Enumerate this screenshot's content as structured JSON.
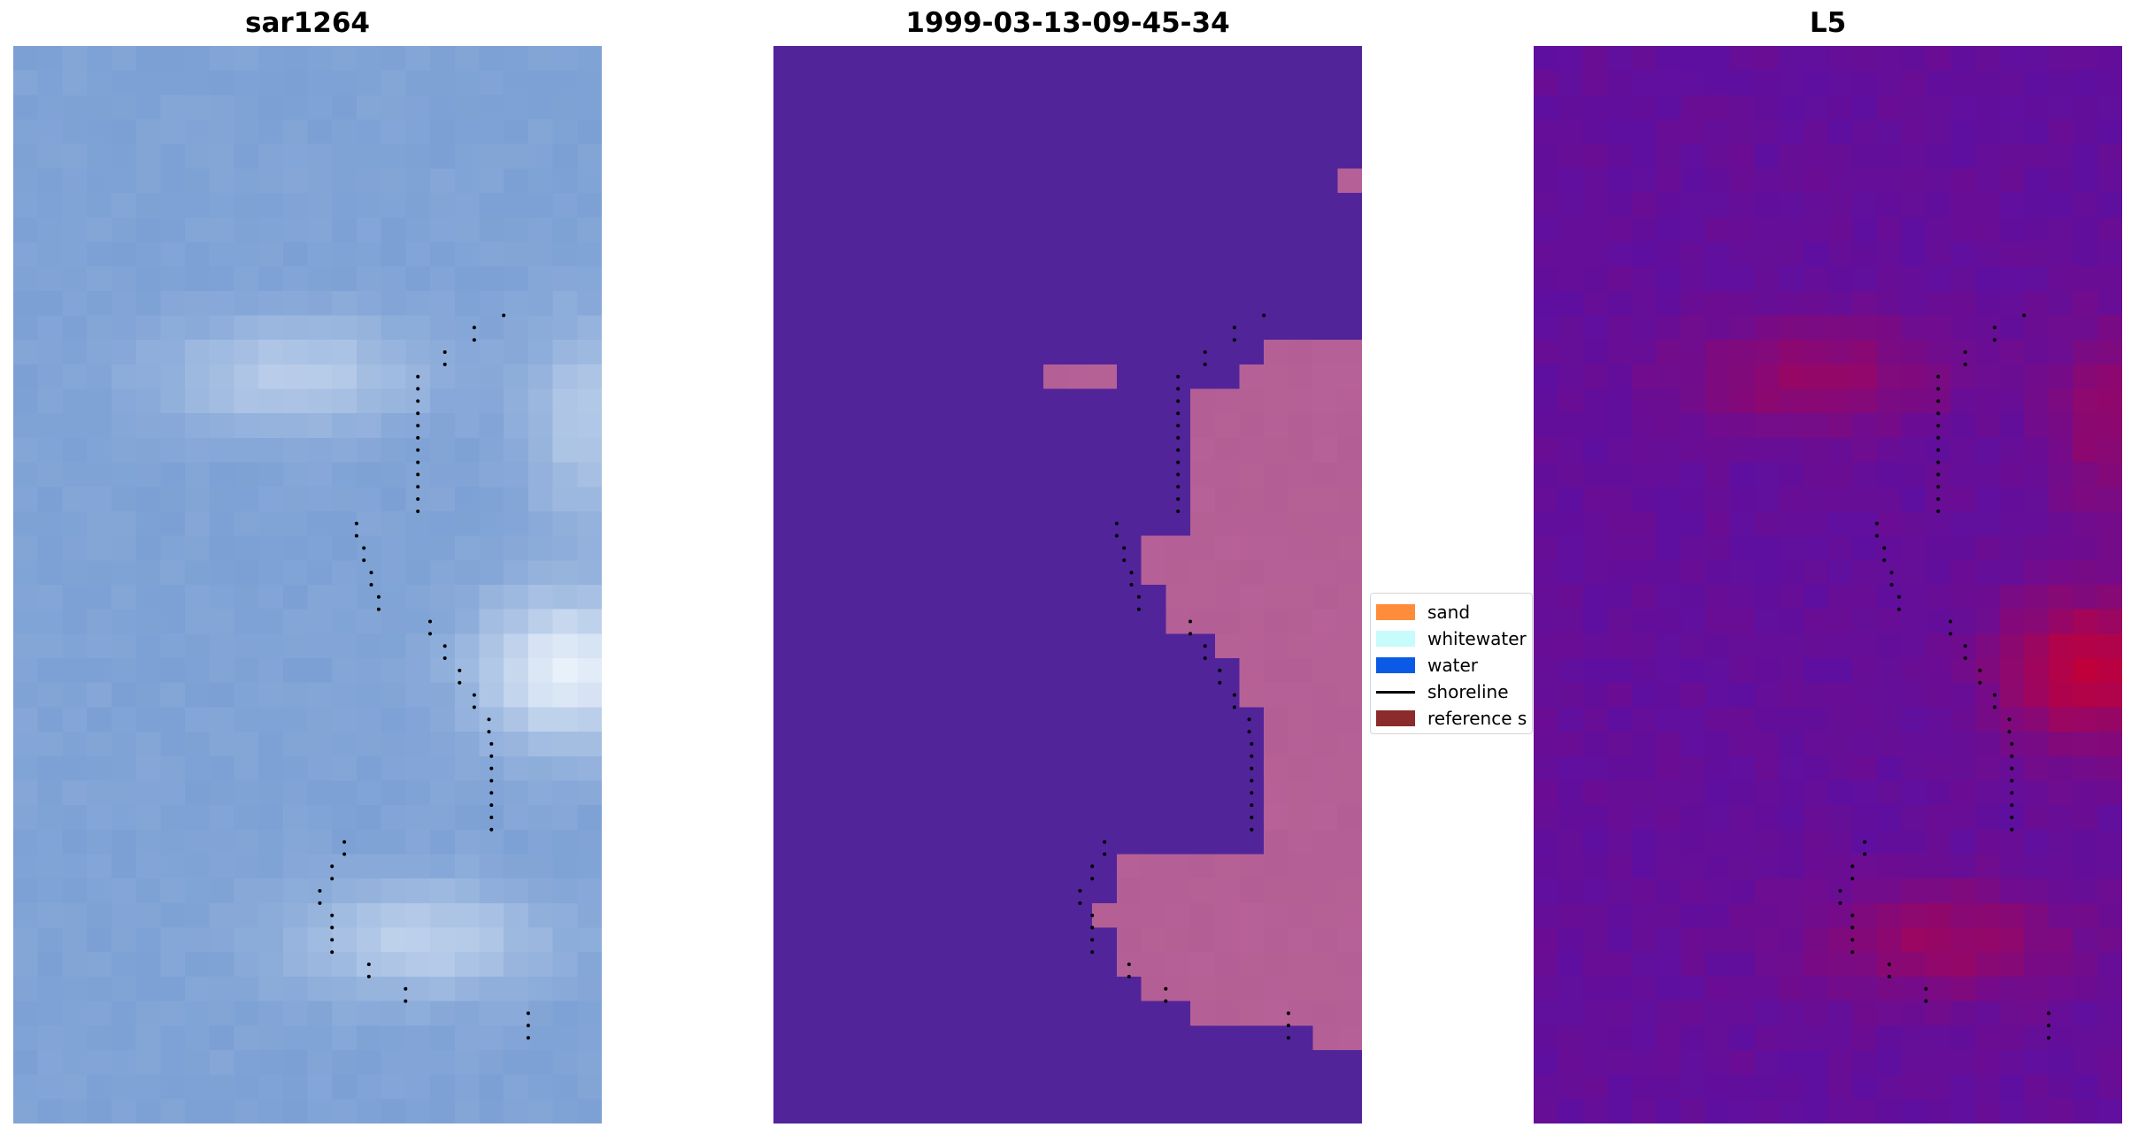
{
  "panels": [
    {
      "title": "sar1264"
    },
    {
      "title": "1999-03-13-09-45-34"
    },
    {
      "title": "L5"
    }
  ],
  "legend": {
    "items": [
      {
        "label": "sand",
        "color": "#ff8c3a",
        "kind": "patch"
      },
      {
        "label": "whitewater",
        "color": "#c8fbfb",
        "kind": "patch"
      },
      {
        "label": "water",
        "color": "#0a5ae6",
        "kind": "patch"
      },
      {
        "label": "shoreline",
        "color": "#000000",
        "kind": "line"
      },
      {
        "label": "reference s",
        "color": "#8b2b2b",
        "kind": "patch"
      }
    ]
  },
  "colors": {
    "rgb_water": "#7ca0d4",
    "rgb_surf": "#e8f0fa",
    "class_water": "#52249a",
    "class_sand": "#b35f95",
    "index_low": "#5e0fa0",
    "index_high": "#c0003a",
    "shoreline_dots": "#000000"
  }
}
